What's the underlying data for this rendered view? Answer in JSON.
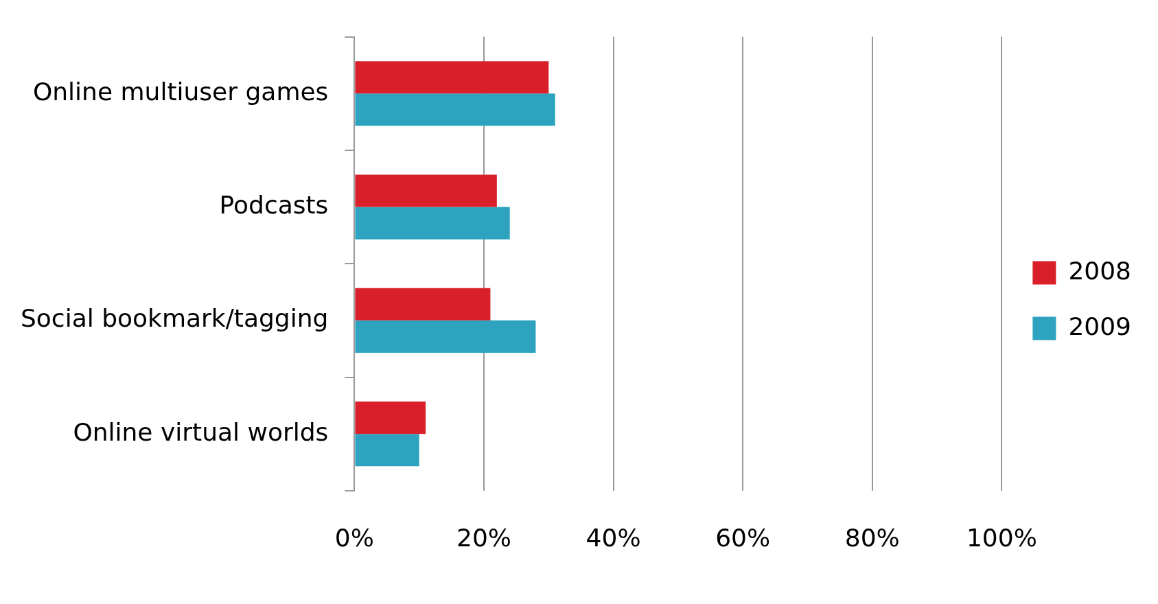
{
  "chart_data": {
    "type": "bar",
    "orientation": "horizontal",
    "categories": [
      "Online multiuser games",
      "Podcasts",
      "Social bookmark/tagging",
      "Online virtual worlds"
    ],
    "series": [
      {
        "name": "2008",
        "color": "#d9202a",
        "values": [
          30,
          22,
          21,
          11
        ]
      },
      {
        "name": "2009",
        "color": "#2ea3c0",
        "values": [
          31,
          24,
          28,
          10
        ]
      }
    ],
    "xlim": [
      0,
      100
    ],
    "xticks": [
      {
        "value": 0,
        "label": "0%"
      },
      {
        "value": 20,
        "label": "20%"
      },
      {
        "value": 40,
        "label": "40%"
      },
      {
        "value": 60,
        "label": "60%"
      },
      {
        "value": 80,
        "label": "80%"
      },
      {
        "value": 100,
        "label": "100%"
      }
    ],
    "grid": "x",
    "legend": "right"
  }
}
